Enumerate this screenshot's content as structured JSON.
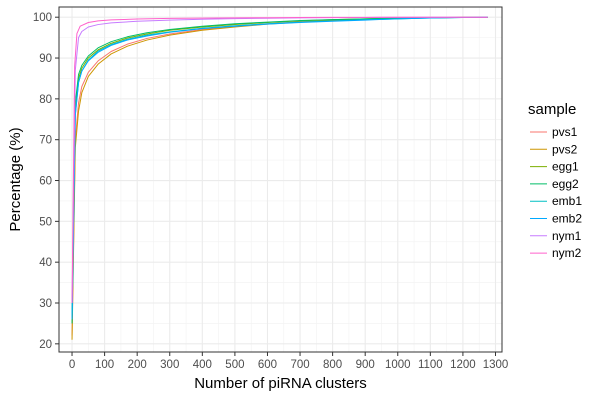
{
  "chart_data": {
    "type": "line",
    "title": "",
    "xlabel": "Number of piRNA clusters",
    "ylabel": "Percentage (%)",
    "xlim": [
      -40,
      1320
    ],
    "ylim": [
      18,
      102.5
    ],
    "x_ticks": [
      0,
      100,
      200,
      300,
      400,
      500,
      600,
      700,
      800,
      900,
      1000,
      1100,
      1200,
      1300
    ],
    "y_ticks": [
      20,
      30,
      40,
      50,
      60,
      70,
      80,
      90,
      100
    ],
    "grid": true,
    "legend_position": "right",
    "legend_title": "sample",
    "series": [
      {
        "name": "pvs1",
        "color": "#F8766D",
        "values": [
          [
            0,
            22
          ],
          [
            10,
            70
          ],
          [
            20,
            79
          ],
          [
            30,
            83
          ],
          [
            50,
            86.5
          ],
          [
            80,
            89.3
          ],
          [
            120,
            91.6
          ],
          [
            170,
            93.4
          ],
          [
            230,
            94.8
          ],
          [
            300,
            95.9
          ],
          [
            400,
            97
          ],
          [
            500,
            97.8
          ],
          [
            600,
            98.4
          ],
          [
            700,
            98.9
          ],
          [
            800,
            99.2
          ],
          [
            900,
            99.5
          ],
          [
            1000,
            99.7
          ],
          [
            1100,
            99.85
          ],
          [
            1200,
            99.95
          ],
          [
            1276,
            100
          ]
        ]
      },
      {
        "name": "pvs2",
        "color": "#CD9600",
        "values": [
          [
            0,
            21
          ],
          [
            10,
            68
          ],
          [
            20,
            77
          ],
          [
            30,
            81.5
          ],
          [
            50,
            85.5
          ],
          [
            80,
            88.5
          ],
          [
            120,
            91
          ],
          [
            170,
            92.9
          ],
          [
            230,
            94.4
          ],
          [
            300,
            95.6
          ],
          [
            400,
            96.8
          ],
          [
            500,
            97.6
          ],
          [
            600,
            98.3
          ],
          [
            700,
            98.8
          ],
          [
            800,
            99.2
          ],
          [
            900,
            99.5
          ],
          [
            1000,
            99.7
          ],
          [
            1100,
            99.85
          ],
          [
            1200,
            99.95
          ],
          [
            1276,
            100
          ]
        ]
      },
      {
        "name": "egg1",
        "color": "#7CAE00",
        "values": [
          [
            0,
            25
          ],
          [
            10,
            78
          ],
          [
            20,
            85
          ],
          [
            30,
            87.5
          ],
          [
            50,
            90
          ],
          [
            80,
            92
          ],
          [
            120,
            93.6
          ],
          [
            170,
            94.9
          ],
          [
            230,
            95.9
          ],
          [
            300,
            96.8
          ],
          [
            400,
            97.6
          ],
          [
            500,
            98.2
          ],
          [
            600,
            98.7
          ],
          [
            700,
            99.1
          ],
          [
            800,
            99.4
          ],
          [
            900,
            99.6
          ],
          [
            1000,
            99.8
          ],
          [
            1100,
            99.9
          ],
          [
            1200,
            99.97
          ],
          [
            1276,
            100
          ]
        ]
      },
      {
        "name": "egg2",
        "color": "#00BE67",
        "values": [
          [
            0,
            25
          ],
          [
            10,
            79
          ],
          [
            20,
            86
          ],
          [
            30,
            88.2
          ],
          [
            50,
            90.5
          ],
          [
            80,
            92.5
          ],
          [
            120,
            94
          ],
          [
            170,
            95.2
          ],
          [
            230,
            96.2
          ],
          [
            300,
            97
          ],
          [
            400,
            97.8
          ],
          [
            500,
            98.4
          ],
          [
            600,
            98.8
          ],
          [
            700,
            99.2
          ],
          [
            800,
            99.4
          ],
          [
            900,
            99.6
          ],
          [
            1000,
            99.8
          ],
          [
            1100,
            99.9
          ],
          [
            1200,
            99.97
          ],
          [
            1276,
            100
          ]
        ]
      },
      {
        "name": "emb1",
        "color": "#00BFC4",
        "values": [
          [
            0,
            26
          ],
          [
            10,
            76
          ],
          [
            20,
            84
          ],
          [
            30,
            86.8
          ],
          [
            50,
            89.5
          ],
          [
            80,
            91.7
          ],
          [
            120,
            93.3
          ],
          [
            170,
            94.6
          ],
          [
            230,
            95.6
          ],
          [
            300,
            96.4
          ],
          [
            400,
            97.3
          ],
          [
            500,
            97.9
          ],
          [
            600,
            98.4
          ],
          [
            700,
            98.8
          ],
          [
            800,
            99.1
          ],
          [
            900,
            99.4
          ],
          [
            1000,
            99.6
          ],
          [
            1100,
            99.8
          ],
          [
            1200,
            99.93
          ],
          [
            1276,
            100
          ]
        ]
      },
      {
        "name": "emb2",
        "color": "#00A9FF",
        "values": [
          [
            0,
            26
          ],
          [
            10,
            76
          ],
          [
            20,
            84
          ],
          [
            30,
            86.8
          ],
          [
            50,
            89.3
          ],
          [
            80,
            91.4
          ],
          [
            120,
            93.1
          ],
          [
            170,
            94.4
          ],
          [
            230,
            95.4
          ],
          [
            300,
            96.3
          ],
          [
            400,
            97.2
          ],
          [
            500,
            97.8
          ],
          [
            600,
            98.3
          ],
          [
            700,
            98.7
          ],
          [
            800,
            99
          ],
          [
            900,
            99.3
          ],
          [
            1000,
            99.6
          ],
          [
            1100,
            99.8
          ],
          [
            1200,
            99.93
          ],
          [
            1276,
            100
          ]
        ]
      },
      {
        "name": "nym1",
        "color": "#C77CFF",
        "values": [
          [
            0,
            30
          ],
          [
            10,
            87
          ],
          [
            20,
            95
          ],
          [
            30,
            96.5
          ],
          [
            50,
            97.6
          ],
          [
            80,
            98.2
          ],
          [
            120,
            98.6
          ],
          [
            200,
            99
          ],
          [
            300,
            99.3
          ],
          [
            400,
            99.5
          ],
          [
            500,
            99.65
          ],
          [
            600,
            99.75
          ],
          [
            700,
            99.83
          ],
          [
            800,
            99.89
          ],
          [
            900,
            99.93
          ],
          [
            1000,
            99.96
          ],
          [
            1100,
            99.98
          ],
          [
            1200,
            99.99
          ],
          [
            1276,
            100
          ]
        ]
      },
      {
        "name": "nym2",
        "color": "#FF61CC",
        "values": [
          [
            0,
            30
          ],
          [
            8,
            88
          ],
          [
            15,
            96
          ],
          [
            25,
            97.8
          ],
          [
            50,
            98.7
          ],
          [
            80,
            99.1
          ],
          [
            120,
            99.35
          ],
          [
            200,
            99.55
          ],
          [
            300,
            99.7
          ],
          [
            400,
            99.78
          ],
          [
            500,
            99.84
          ],
          [
            600,
            99.88
          ],
          [
            700,
            99.92
          ],
          [
            800,
            99.95
          ],
          [
            900,
            99.97
          ],
          [
            1000,
            99.98
          ],
          [
            1100,
            99.99
          ],
          [
            1200,
            100
          ],
          [
            1276,
            100
          ]
        ]
      }
    ]
  }
}
